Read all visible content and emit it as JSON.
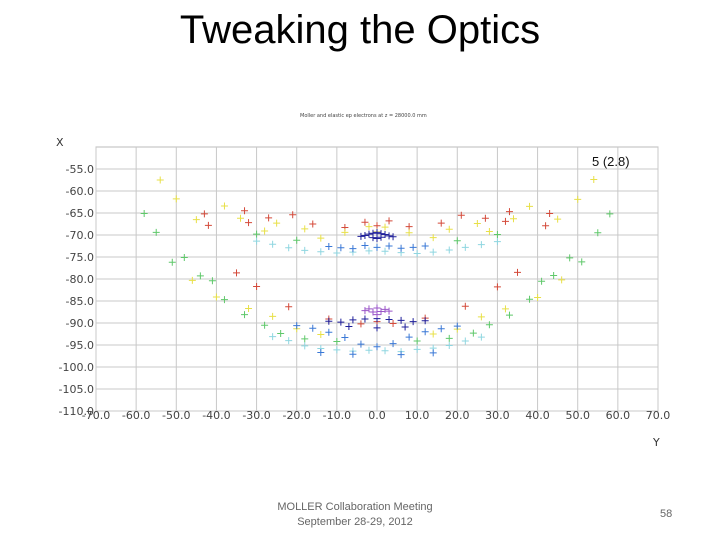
{
  "slide": {
    "title": "Tweaking the Optics",
    "footer_line1": "MOLLER Collaboration Meeting",
    "footer_line2": "September 28-29, 2012",
    "page_number": "58"
  },
  "chart_data": {
    "type": "scatter",
    "title": "Moller and elastic ep electrons at z = 28000.0 mm",
    "xlabel": "Y",
    "ylabel": "X",
    "annotation": "5 (2.8)",
    "xlim": [
      -70,
      70
    ],
    "ylim": [
      -110,
      -50
    ],
    "grid": true,
    "xticks": [
      "-70.0",
      "-60.0",
      "-50.0",
      "-40.0",
      "-30.0",
      "-20.0",
      "-10.0",
      "0.0",
      "10.0",
      "20.0",
      "30.0",
      "40.0",
      "50.0",
      "60.0",
      "70.0"
    ],
    "yticks": [
      "-55.0",
      "-60.0",
      "-65.0",
      "-70.0",
      "-75.0",
      "-80.0",
      "-85.0",
      "-90.0",
      "-95.0",
      "-100.0",
      "-105.0",
      "-110.0"
    ],
    "series": [
      {
        "color": "#d44a3a",
        "points": [
          [
            -43,
            -65.2
          ],
          [
            -42,
            -67.8
          ],
          [
            -33,
            -64.5
          ],
          [
            -32,
            -67.2
          ],
          [
            -27,
            -66.1
          ],
          [
            -21,
            -65.4
          ],
          [
            -16,
            -67.5
          ],
          [
            -8,
            -68.3
          ],
          [
            -3,
            -67.1
          ],
          [
            0,
            -67.9
          ],
          [
            3,
            -66.8
          ],
          [
            8,
            -68.1
          ],
          [
            16,
            -67.3
          ],
          [
            21,
            -65.5
          ],
          [
            27,
            -66.2
          ],
          [
            32,
            -66.9
          ],
          [
            33,
            -64.7
          ],
          [
            42,
            -67.9
          ],
          [
            43,
            -65.1
          ],
          [
            -35,
            -78.6
          ],
          [
            -30,
            -81.7
          ],
          [
            -22,
            -86.3
          ],
          [
            -12,
            -89.1
          ],
          [
            -4,
            -90.2
          ],
          [
            0,
            -89.7
          ],
          [
            4,
            -90.1
          ],
          [
            12,
            -88.9
          ],
          [
            22,
            -86.2
          ],
          [
            30,
            -81.8
          ],
          [
            35,
            -78.5
          ]
        ]
      },
      {
        "color": "#e8e048",
        "points": [
          [
            -54,
            -57.5
          ],
          [
            -50,
            -61.8
          ],
          [
            -45,
            -66.5
          ],
          [
            -38,
            -63.4
          ],
          [
            -34,
            -66.2
          ],
          [
            -28,
            -69.1
          ],
          [
            -25,
            -67.3
          ],
          [
            -18,
            -68.6
          ],
          [
            -14,
            -70.7
          ],
          [
            -8,
            -69.4
          ],
          [
            -2,
            -68.1
          ],
          [
            0,
            -69.3
          ],
          [
            2,
            -68.2
          ],
          [
            8,
            -69.5
          ],
          [
            14,
            -70.6
          ],
          [
            18,
            -68.7
          ],
          [
            25,
            -67.4
          ],
          [
            28,
            -69.2
          ],
          [
            34,
            -66.3
          ],
          [
            38,
            -63.5
          ],
          [
            45,
            -66.4
          ],
          [
            50,
            -61.9
          ],
          [
            54,
            -57.4
          ],
          [
            -46,
            -80.3
          ],
          [
            -40,
            -84.1
          ],
          [
            -32,
            -86.7
          ],
          [
            -26,
            -88.5
          ],
          [
            -20,
            -91.3
          ],
          [
            -14,
            -92.6
          ],
          [
            14,
            -92.5
          ],
          [
            20,
            -91.4
          ],
          [
            26,
            -88.6
          ],
          [
            32,
            -86.8
          ],
          [
            40,
            -84.2
          ],
          [
            46,
            -80.2
          ]
        ]
      },
      {
        "color": "#5fc86a",
        "points": [
          [
            -58,
            -65.1
          ],
          [
            -55,
            -69.4
          ],
          [
            -51,
            -76.2
          ],
          [
            -48,
            -75.1
          ],
          [
            -44,
            -79.3
          ],
          [
            -41,
            -80.4
          ],
          [
            -38,
            -84.7
          ],
          [
            -33,
            -88.1
          ],
          [
            -28,
            -90.5
          ],
          [
            -24,
            -92.4
          ],
          [
            -18,
            -93.6
          ],
          [
            -10,
            -94.2
          ],
          [
            10,
            -94.1
          ],
          [
            18,
            -93.5
          ],
          [
            24,
            -92.3
          ],
          [
            28,
            -90.4
          ],
          [
            33,
            -88.2
          ],
          [
            38,
            -84.6
          ],
          [
            41,
            -80.5
          ],
          [
            44,
            -79.2
          ],
          [
            48,
            -75.2
          ],
          [
            51,
            -76.1
          ],
          [
            55,
            -69.5
          ],
          [
            58,
            -65.2
          ],
          [
            -30,
            -69.8
          ],
          [
            -20,
            -71.2
          ],
          [
            20,
            -71.3
          ],
          [
            30,
            -69.9
          ]
        ]
      },
      {
        "color": "#8fd6e0",
        "points": [
          [
            -30,
            -71.4
          ],
          [
            -26,
            -72.1
          ],
          [
            -22,
            -72.9
          ],
          [
            -18,
            -73.5
          ],
          [
            -14,
            -73.8
          ],
          [
            -10,
            -74.1
          ],
          [
            -6,
            -73.9
          ],
          [
            -2,
            -73.6
          ],
          [
            2,
            -73.7
          ],
          [
            6,
            -74.0
          ],
          [
            10,
            -74.2
          ],
          [
            14,
            -73.9
          ],
          [
            18,
            -73.4
          ],
          [
            22,
            -72.8
          ],
          [
            26,
            -72.2
          ],
          [
            30,
            -71.5
          ],
          [
            -26,
            -93.1
          ],
          [
            -22,
            -94.0
          ],
          [
            -18,
            -95.2
          ],
          [
            -14,
            -95.8
          ],
          [
            -10,
            -96.1
          ],
          [
            -6,
            -96.4
          ],
          [
            -2,
            -96.2
          ],
          [
            2,
            -96.3
          ],
          [
            6,
            -96.5
          ],
          [
            10,
            -96.0
          ],
          [
            14,
            -95.7
          ],
          [
            18,
            -95.1
          ],
          [
            22,
            -94.1
          ],
          [
            26,
            -93.2
          ]
        ]
      },
      {
        "color": "#3a78d6",
        "points": [
          [
            -12,
            -72.6
          ],
          [
            -9,
            -72.9
          ],
          [
            -6,
            -73.1
          ],
          [
            -3,
            -72.4
          ],
          [
            0,
            -72.8
          ],
          [
            3,
            -72.5
          ],
          [
            6,
            -73.0
          ],
          [
            9,
            -72.8
          ],
          [
            12,
            -72.5
          ],
          [
            -20,
            -90.6
          ],
          [
            -16,
            -91.2
          ],
          [
            -12,
            -92.1
          ],
          [
            -8,
            -93.3
          ],
          [
            -4,
            -94.8
          ],
          [
            0,
            -95.4
          ],
          [
            4,
            -94.7
          ],
          [
            8,
            -93.2
          ],
          [
            12,
            -92.0
          ],
          [
            16,
            -91.3
          ],
          [
            20,
            -90.7
          ],
          [
            -14,
            -96.7
          ],
          [
            -6,
            -97.1
          ],
          [
            6,
            -97.2
          ],
          [
            14,
            -96.8
          ]
        ]
      },
      {
        "color": "#1f1f9a",
        "points": [
          [
            -4,
            -70.3
          ],
          [
            -3,
            -70.1
          ],
          [
            -2,
            -69.8
          ],
          [
            -1,
            -69.6
          ],
          [
            0,
            -69.4
          ],
          [
            1,
            -69.7
          ],
          [
            2,
            -69.9
          ],
          [
            3,
            -70.2
          ],
          [
            4,
            -70.4
          ],
          [
            -1,
            -70.6
          ],
          [
            1,
            -70.5
          ],
          [
            0,
            -70.8
          ],
          [
            -12,
            -89.6
          ],
          [
            -9,
            -89.8
          ],
          [
            -6,
            -89.3
          ],
          [
            -3,
            -89.1
          ],
          [
            0,
            -89.0
          ],
          [
            3,
            -89.2
          ],
          [
            6,
            -89.4
          ],
          [
            9,
            -89.7
          ],
          [
            12,
            -89.5
          ],
          [
            -7,
            -90.8
          ],
          [
            0,
            -91.1
          ],
          [
            7,
            -90.9
          ]
        ]
      },
      {
        "color": "#9a55c8",
        "points": [
          [
            -3,
            -87.2
          ],
          [
            -2,
            -86.8
          ],
          [
            -1,
            -87.5
          ],
          [
            0,
            -86.6
          ],
          [
            1,
            -87.4
          ],
          [
            2,
            -86.9
          ],
          [
            3,
            -87.3
          ],
          [
            0,
            -88.1
          ]
        ]
      }
    ]
  }
}
